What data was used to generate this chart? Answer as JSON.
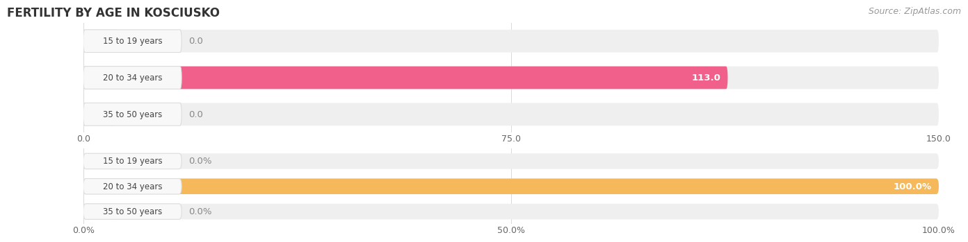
{
  "title": "FERTILITY BY AGE IN KOSCIUSKO",
  "source": "Source: ZipAtlas.com",
  "top_chart": {
    "categories": [
      "15 to 19 years",
      "20 to 34 years",
      "35 to 50 years"
    ],
    "values": [
      0.0,
      113.0,
      0.0
    ],
    "bar_color": "#f0608a",
    "stub_color": "#f5a0ba",
    "bg_color": "#efefef",
    "bar_label_values": [
      "0.0",
      "113.0",
      "0.0"
    ],
    "xlim": [
      0,
      150
    ],
    "xticks": [
      0.0,
      75.0,
      150.0
    ],
    "xtick_labels": [
      "0.0",
      "75.0",
      "150.0"
    ]
  },
  "bottom_chart": {
    "categories": [
      "15 to 19 years",
      "20 to 34 years",
      "35 to 50 years"
    ],
    "values": [
      0.0,
      100.0,
      0.0
    ],
    "bar_color": "#f5b85a",
    "stub_color": "#f5d0a0",
    "bg_color": "#efefef",
    "bar_label_values": [
      "0.0%",
      "100.0%",
      "0.0%"
    ],
    "xlim": [
      0,
      100
    ],
    "xticks": [
      0.0,
      50.0,
      100.0
    ],
    "xtick_labels": [
      "0.0%",
      "50.0%",
      "100.0%"
    ]
  },
  "background_color": "#ffffff",
  "label_fontsize": 9.5,
  "tick_fontsize": 9,
  "title_fontsize": 12,
  "source_fontsize": 9,
  "category_fontsize": 8.5,
  "grid_color": "#d0d0d0",
  "pill_bg": "#f8f8f8",
  "pill_edge": "#dddddd"
}
